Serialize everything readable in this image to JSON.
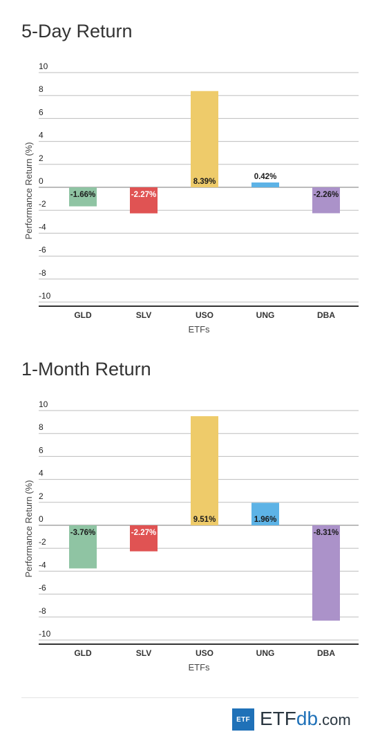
{
  "chart_data": [
    {
      "type": "bar",
      "title": "5-Day Return",
      "xlabel": "ETFs",
      "ylabel": "Performance Return (%)",
      "ylim": [
        -10,
        10
      ],
      "yticks": [
        10,
        8,
        6,
        4,
        2,
        0,
        -2,
        -4,
        -6,
        -8,
        -10
      ],
      "grid": true,
      "categories": [
        "GLD",
        "SLV",
        "USO",
        "UNG",
        "DBA"
      ],
      "values": [
        -1.66,
        -2.27,
        8.39,
        0.42,
        -2.26
      ],
      "data_labels": [
        "-1.66%",
        "-2.27%",
        "8.39%",
        "0.42%",
        "-2.26%"
      ],
      "colors": [
        "#8fc4a3",
        "#e05353",
        "#eecb6a",
        "#5db3e6",
        "#ab92c9"
      ]
    },
    {
      "type": "bar",
      "title": "1-Month Return",
      "xlabel": "ETFs",
      "ylabel": "Performance Return (%)",
      "ylim": [
        -10,
        10
      ],
      "yticks": [
        10,
        8,
        6,
        4,
        2,
        0,
        -2,
        -4,
        -6,
        -8,
        -10
      ],
      "grid": true,
      "categories": [
        "GLD",
        "SLV",
        "USO",
        "UNG",
        "DBA"
      ],
      "values": [
        -3.76,
        -2.27,
        9.51,
        1.96,
        -8.31
      ],
      "data_labels": [
        "-3.76%",
        "-2.27%",
        "9.51%",
        "1.96%",
        "-8.31%"
      ],
      "colors": [
        "#8fc4a3",
        "#e05353",
        "#eecb6a",
        "#5db3e6",
        "#ab92c9"
      ]
    }
  ],
  "footer": {
    "logo_box": "ETF",
    "logo_etf": "ETF",
    "logo_db": "db",
    "logo_com": ".com"
  }
}
